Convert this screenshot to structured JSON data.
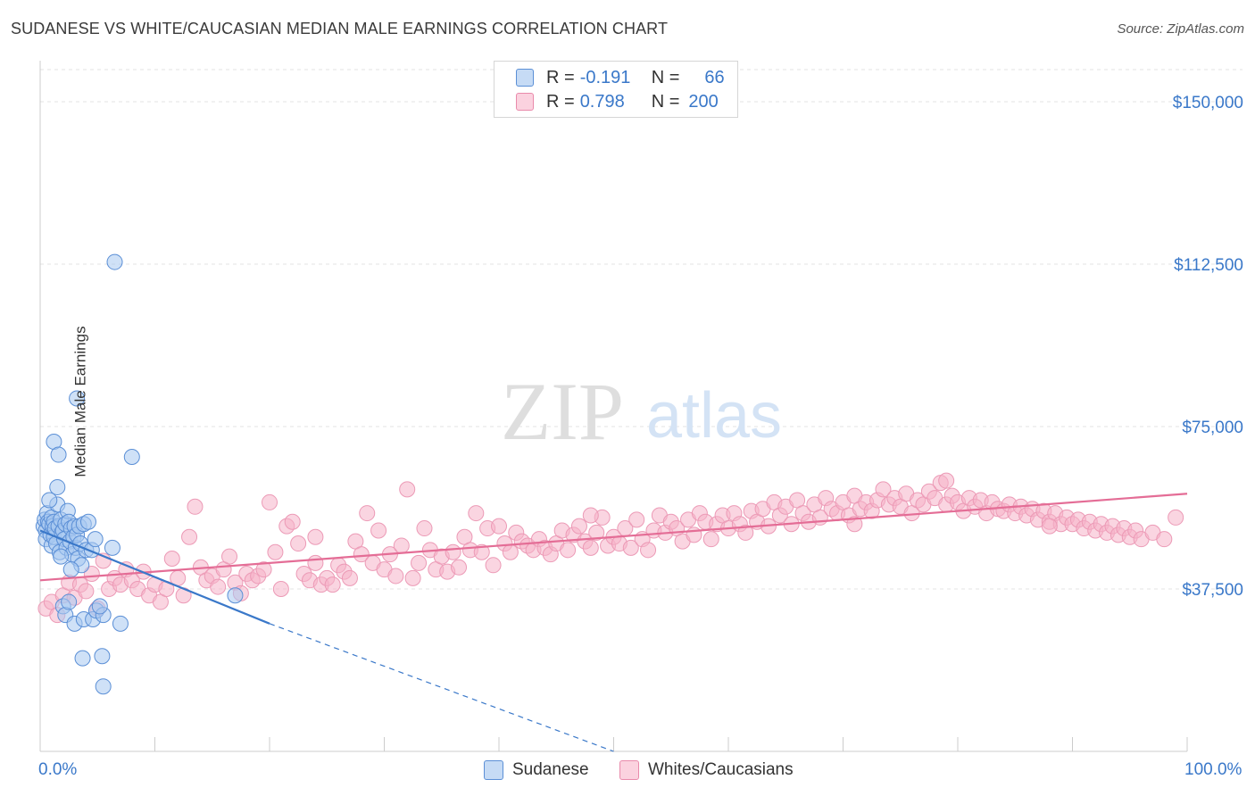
{
  "title": "SUDANESE VS WHITE/CAUCASIAN MEDIAN MALE EARNINGS CORRELATION CHART",
  "source": "Source: ZipAtlas.com",
  "watermark": {
    "zip": "ZIP",
    "atlas": "atlas"
  },
  "legend": {
    "rows": [
      {
        "r_label": "R =",
        "r_value": "-0.191",
        "n_label": "N =",
        "n_value": "66",
        "color": "#a8c8f0"
      },
      {
        "r_label": "R =",
        "r_value": "0.798",
        "n_label": "N =",
        "n_value": "200",
        "color": "#f5b3c8"
      }
    ]
  },
  "bottom_legend": [
    {
      "name": "Sudanese",
      "color": "#a8c8f0"
    },
    {
      "name": "Whites/Caucasians",
      "color": "#f5b3c8"
    }
  ],
  "colors": {
    "blue": "#3a78c9",
    "blue_fill": "#a8c8f0",
    "pink": "#e46d96",
    "pink_fill": "#f5b3c8",
    "tick_label": "#3a78c9",
    "grid": "#e3e3e3"
  },
  "chart_data": {
    "type": "scatter",
    "xlabel": "",
    "ylabel": "Median Male Earnings",
    "x_tick_labels": [
      "0.0%",
      "100.0%"
    ],
    "xlim": [
      0,
      100
    ],
    "ylim": [
      0,
      155000
    ],
    "y_ticks": [
      37500,
      75000,
      112500,
      150000
    ],
    "y_tick_labels": [
      "$37,500",
      "$75,000",
      "$112,500",
      "$150,000"
    ],
    "grid": "horizontal dashed",
    "series": [
      {
        "name": "Sudanese",
        "trend": {
          "x": [
            0,
            20
          ],
          "y": [
            51000,
            29500
          ],
          "dashed_to": [
            50,
            0
          ]
        },
        "points": [
          [
            0.3,
            52000
          ],
          [
            0.4,
            53500
          ],
          [
            0.5,
            51000
          ],
          [
            0.5,
            49000
          ],
          [
            0.6,
            55000
          ],
          [
            0.7,
            53000
          ],
          [
            0.8,
            52500
          ],
          [
            0.9,
            50000
          ],
          [
            1.0,
            54000
          ],
          [
            1.0,
            47500
          ],
          [
            1.1,
            52000
          ],
          [
            1.2,
            53000
          ],
          [
            1.2,
            49500
          ],
          [
            1.3,
            51500
          ],
          [
            1.4,
            48000
          ],
          [
            1.5,
            57000
          ],
          [
            1.5,
            61000
          ],
          [
            1.6,
            52000
          ],
          [
            1.7,
            46000
          ],
          [
            1.8,
            53500
          ],
          [
            1.9,
            50500
          ],
          [
            2.0,
            51000
          ],
          [
            2.1,
            49000
          ],
          [
            2.2,
            52500
          ],
          [
            2.3,
            47000
          ],
          [
            2.4,
            55500
          ],
          [
            2.5,
            53000
          ],
          [
            2.6,
            48500
          ],
          [
            2.7,
            51500
          ],
          [
            2.8,
            45500
          ],
          [
            2.9,
            49500
          ],
          [
            3.0,
            52000
          ],
          [
            3.1,
            47000
          ],
          [
            3.2,
            50000
          ],
          [
            3.3,
            44500
          ],
          [
            3.4,
            52000
          ],
          [
            3.5,
            48000
          ],
          [
            3.6,
            43000
          ],
          [
            3.8,
            52500
          ],
          [
            4.0,
            46500
          ],
          [
            4.2,
            53000
          ],
          [
            4.5,
            46500
          ],
          [
            4.8,
            49000
          ],
          [
            1.2,
            71500
          ],
          [
            1.6,
            68500
          ],
          [
            3.2,
            81500
          ],
          [
            6.5,
            113000
          ],
          [
            8.0,
            68000
          ],
          [
            2.0,
            33500
          ],
          [
            2.2,
            31500
          ],
          [
            2.5,
            34500
          ],
          [
            3.0,
            29500
          ],
          [
            3.8,
            30500
          ],
          [
            4.6,
            30500
          ],
          [
            4.9,
            32500
          ],
          [
            5.5,
            31500
          ],
          [
            7.0,
            29500
          ],
          [
            3.7,
            21500
          ],
          [
            5.4,
            22000
          ],
          [
            5.5,
            15000
          ],
          [
            6.3,
            47000
          ],
          [
            17.0,
            36000
          ],
          [
            1.8,
            45000
          ],
          [
            2.7,
            42000
          ],
          [
            0.8,
            58000
          ],
          [
            5.2,
            33500
          ]
        ]
      },
      {
        "name": "Whites/Caucasians",
        "trend": {
          "x": [
            0,
            100
          ],
          "y": [
            39500,
            59500
          ]
        },
        "points": [
          [
            0.5,
            33000
          ],
          [
            1.0,
            34500
          ],
          [
            1.5,
            31500
          ],
          [
            2.0,
            36000
          ],
          [
            2.5,
            39000
          ],
          [
            3.0,
            35500
          ],
          [
            3.5,
            38500
          ],
          [
            4.0,
            37000
          ],
          [
            4.5,
            41000
          ],
          [
            5.0,
            33000
          ],
          [
            5.5,
            44000
          ],
          [
            6.0,
            37500
          ],
          [
            6.5,
            40000
          ],
          [
            7.0,
            38500
          ],
          [
            7.5,
            42000
          ],
          [
            8.0,
            39500
          ],
          [
            8.5,
            37500
          ],
          [
            9.0,
            41500
          ],
          [
            9.5,
            36000
          ],
          [
            10.0,
            38500
          ],
          [
            10.5,
            34500
          ],
          [
            11.0,
            37500
          ],
          [
            11.5,
            44500
          ],
          [
            12.0,
            40000
          ],
          [
            12.5,
            36000
          ],
          [
            13.0,
            49500
          ],
          [
            13.5,
            56500
          ],
          [
            14.0,
            42500
          ],
          [
            14.5,
            39500
          ],
          [
            15.0,
            40500
          ],
          [
            15.5,
            38000
          ],
          [
            16.0,
            42000
          ],
          [
            16.5,
            45000
          ],
          [
            17.0,
            39000
          ],
          [
            17.5,
            36500
          ],
          [
            18.0,
            41000
          ],
          [
            18.5,
            39500
          ],
          [
            19.0,
            40500
          ],
          [
            19.5,
            42000
          ],
          [
            20.0,
            57500
          ],
          [
            20.5,
            46000
          ],
          [
            21.0,
            37500
          ],
          [
            21.5,
            52000
          ],
          [
            22.0,
            53000
          ],
          [
            22.5,
            48000
          ],
          [
            23.0,
            41000
          ],
          [
            23.5,
            39500
          ],
          [
            24.0,
            43500
          ],
          [
            24.5,
            38500
          ],
          [
            25.0,
            40000
          ],
          [
            25.5,
            38500
          ],
          [
            26.0,
            43000
          ],
          [
            26.5,
            41500
          ],
          [
            27.0,
            40000
          ],
          [
            27.5,
            48500
          ],
          [
            28.0,
            45500
          ],
          [
            28.5,
            55000
          ],
          [
            29.0,
            43500
          ],
          [
            29.5,
            51000
          ],
          [
            30.0,
            42000
          ],
          [
            30.5,
            45500
          ],
          [
            31.0,
            40500
          ],
          [
            31.5,
            47500
          ],
          [
            32.0,
            60500
          ],
          [
            32.5,
            40000
          ],
          [
            33.0,
            43500
          ],
          [
            33.5,
            51500
          ],
          [
            34.0,
            46500
          ],
          [
            34.5,
            42000
          ],
          [
            35.0,
            45000
          ],
          [
            35.5,
            41500
          ],
          [
            36.0,
            46000
          ],
          [
            36.5,
            42500
          ],
          [
            37.0,
            49500
          ],
          [
            37.5,
            46500
          ],
          [
            38.0,
            55000
          ],
          [
            38.5,
            46000
          ],
          [
            39.0,
            51500
          ],
          [
            39.5,
            43000
          ],
          [
            40.0,
            52000
          ],
          [
            40.5,
            48000
          ],
          [
            41.0,
            46000
          ],
          [
            41.5,
            50500
          ],
          [
            42.0,
            48500
          ],
          [
            42.5,
            47500
          ],
          [
            43.0,
            46500
          ],
          [
            43.5,
            49000
          ],
          [
            44.0,
            47000
          ],
          [
            44.5,
            45500
          ],
          [
            45.0,
            48000
          ],
          [
            45.5,
            51000
          ],
          [
            46.0,
            46500
          ],
          [
            46.5,
            50000
          ],
          [
            47.0,
            52000
          ],
          [
            47.5,
            48500
          ],
          [
            48.0,
            47000
          ],
          [
            48.5,
            50500
          ],
          [
            49.0,
            54000
          ],
          [
            49.5,
            47500
          ],
          [
            50.0,
            49500
          ],
          [
            50.5,
            48000
          ],
          [
            51.0,
            51500
          ],
          [
            51.5,
            47000
          ],
          [
            52.0,
            53500
          ],
          [
            52.5,
            49000
          ],
          [
            53.0,
            46500
          ],
          [
            53.5,
            51000
          ],
          [
            54.0,
            54500
          ],
          [
            54.5,
            50500
          ],
          [
            55.0,
            53000
          ],
          [
            55.5,
            51500
          ],
          [
            56.0,
            48500
          ],
          [
            56.5,
            53500
          ],
          [
            57.0,
            50000
          ],
          [
            57.5,
            55000
          ],
          [
            58.0,
            53000
          ],
          [
            58.5,
            49000
          ],
          [
            59.0,
            52500
          ],
          [
            59.5,
            54500
          ],
          [
            60.0,
            51500
          ],
          [
            60.5,
            55000
          ],
          [
            61.0,
            52500
          ],
          [
            61.5,
            50500
          ],
          [
            62.0,
            55500
          ],
          [
            62.5,
            53000
          ],
          [
            63.0,
            56000
          ],
          [
            63.5,
            52000
          ],
          [
            64.0,
            57500
          ],
          [
            64.5,
            54500
          ],
          [
            65.0,
            56500
          ],
          [
            65.5,
            52500
          ],
          [
            66.0,
            58000
          ],
          [
            66.5,
            55000
          ],
          [
            67.0,
            53000
          ],
          [
            67.5,
            57000
          ],
          [
            68.0,
            54000
          ],
          [
            68.5,
            58500
          ],
          [
            69.0,
            56000
          ],
          [
            69.5,
            55000
          ],
          [
            70.0,
            57500
          ],
          [
            70.5,
            54500
          ],
          [
            71.0,
            59000
          ],
          [
            71.5,
            56000
          ],
          [
            72.0,
            57500
          ],
          [
            72.5,
            55500
          ],
          [
            73.0,
            58000
          ],
          [
            73.5,
            60500
          ],
          [
            74.0,
            57000
          ],
          [
            74.5,
            58500
          ],
          [
            75.0,
            56500
          ],
          [
            75.5,
            59500
          ],
          [
            76.0,
            55000
          ],
          [
            76.5,
            58000
          ],
          [
            77.0,
            57000
          ],
          [
            77.5,
            60000
          ],
          [
            78.0,
            58500
          ],
          [
            78.5,
            62000
          ],
          [
            79.0,
            57000
          ],
          [
            79.5,
            59000
          ],
          [
            80.0,
            57500
          ],
          [
            80.5,
            55500
          ],
          [
            81.0,
            58500
          ],
          [
            81.5,
            56500
          ],
          [
            82.0,
            58000
          ],
          [
            82.5,
            55000
          ],
          [
            83.0,
            57500
          ],
          [
            83.5,
            56000
          ],
          [
            84.0,
            55500
          ],
          [
            84.5,
            57000
          ],
          [
            85.0,
            55000
          ],
          [
            85.5,
            56500
          ],
          [
            86.0,
            54500
          ],
          [
            86.5,
            56000
          ],
          [
            87.0,
            53500
          ],
          [
            87.5,
            55500
          ],
          [
            88.0,
            53000
          ],
          [
            88.5,
            55000
          ],
          [
            89.0,
            52500
          ],
          [
            89.5,
            54000
          ],
          [
            90.0,
            52500
          ],
          [
            90.5,
            53500
          ],
          [
            91.0,
            51500
          ],
          [
            91.5,
            53000
          ],
          [
            92.0,
            51000
          ],
          [
            92.5,
            52500
          ],
          [
            93.0,
            50500
          ],
          [
            93.5,
            52000
          ],
          [
            94.0,
            50000
          ],
          [
            94.5,
            51500
          ],
          [
            95.0,
            49500
          ],
          [
            95.5,
            51000
          ],
          [
            96.0,
            49000
          ],
          [
            97.0,
            50500
          ],
          [
            98.0,
            49000
          ],
          [
            99.0,
            54000
          ],
          [
            71.0,
            52500
          ],
          [
            79.0,
            62500
          ],
          [
            24.0,
            49500
          ],
          [
            48.0,
            54500
          ],
          [
            88.0,
            52000
          ]
        ]
      }
    ]
  }
}
